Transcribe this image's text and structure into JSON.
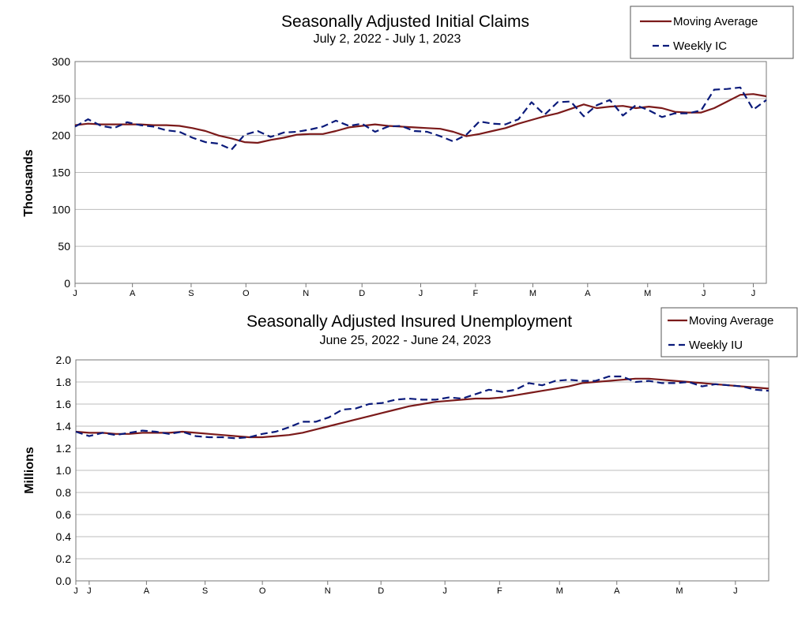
{
  "colors": {
    "moving_average": "#7b1a1a",
    "weekly": "#0a1a7a",
    "grid": "#bdbdbd",
    "axis": "#777777"
  },
  "chart_data": [
    {
      "type": "line",
      "title": "Seasonally Adjusted Initial Claims",
      "subtitle": "July 2, 2022 - July 1, 2023",
      "ylabel": "Thousands",
      "ylim": [
        0,
        300
      ],
      "yticks": [
        "0",
        "50",
        "100",
        "150",
        "200",
        "250",
        "300"
      ],
      "ytick_values": [
        0,
        50,
        100,
        150,
        200,
        250,
        300
      ],
      "xticks": [
        "J",
        "A",
        "S",
        "O",
        "N",
        "D",
        "J",
        "F",
        "M",
        "A",
        "M",
        "J",
        "J"
      ],
      "xtick_weeks": [
        0,
        4.4,
        8.9,
        13.1,
        17.7,
        22,
        26.5,
        30.7,
        35.1,
        39.3,
        43.9,
        48.2,
        52
      ],
      "grid": true,
      "legend": "top-right",
      "series": [
        {
          "name": "Moving Average",
          "style": "solid",
          "values": [
            214,
            216,
            215,
            215,
            215,
            215,
            214,
            214,
            213,
            210,
            206,
            200,
            196,
            191,
            190,
            194,
            197,
            201,
            202,
            202,
            206,
            211,
            213,
            215,
            213,
            212,
            211,
            210,
            209,
            205,
            199,
            202,
            206,
            210,
            216,
            221,
            226,
            230,
            236,
            242,
            237,
            239,
            240,
            237,
            239,
            237,
            232,
            231,
            231,
            237,
            246,
            255,
            256,
            253
          ]
        },
        {
          "name": "Weekly IC",
          "style": "dashed",
          "values": [
            212,
            222,
            213,
            210,
            218,
            214,
            212,
            207,
            205,
            197,
            191,
            189,
            181,
            201,
            206,
            198,
            204,
            205,
            208,
            212,
            220,
            213,
            216,
            205,
            212,
            213,
            206,
            205,
            199,
            192,
            201,
            219,
            216,
            215,
            222,
            245,
            228,
            245,
            246,
            226,
            241,
            248,
            227,
            241,
            234,
            225,
            230,
            230,
            234,
            262,
            263,
            265,
            235,
            248
          ]
        }
      ]
    },
    {
      "type": "line",
      "title": "Seasonally Adjusted Insured Unemployment",
      "subtitle": "June 25, 2022 - June 24, 2023",
      "ylabel": "Millions",
      "ylim": [
        0.0,
        2.0
      ],
      "yticks": [
        "0.0",
        "0.2",
        "0.4",
        "0.6",
        "0.8",
        "1.0",
        "1.2",
        "1.4",
        "1.6",
        "1.8",
        "2.0"
      ],
      "ytick_values": [
        0.0,
        0.2,
        0.4,
        0.6,
        0.8,
        1.0,
        1.2,
        1.4,
        1.6,
        1.8,
        2.0
      ],
      "xticks": [
        "J",
        "J",
        "A",
        "S",
        "O",
        "N",
        "D",
        "J",
        "F",
        "M",
        "A",
        "M",
        "J"
      ],
      "xtick_weeks": [
        0,
        1,
        5.3,
        9.7,
        14,
        18.9,
        22.9,
        27.7,
        31.8,
        36.3,
        40.6,
        45.3,
        49.5
      ],
      "grid": true,
      "legend": "top-right",
      "series": [
        {
          "name": "Moving Average",
          "style": "solid",
          "values": [
            1.35,
            1.34,
            1.34,
            1.33,
            1.33,
            1.34,
            1.34,
            1.34,
            1.35,
            1.34,
            1.33,
            1.32,
            1.31,
            1.3,
            1.3,
            1.31,
            1.32,
            1.34,
            1.37,
            1.4,
            1.43,
            1.46,
            1.49,
            1.52,
            1.55,
            1.58,
            1.6,
            1.62,
            1.63,
            1.64,
            1.65,
            1.65,
            1.66,
            1.68,
            1.7,
            1.72,
            1.74,
            1.76,
            1.79,
            1.8,
            1.81,
            1.82,
            1.83,
            1.83,
            1.82,
            1.81,
            1.8,
            1.79,
            1.78,
            1.77,
            1.76,
            1.75,
            1.74
          ]
        },
        {
          "name": "Weekly IU",
          "style": "dashed",
          "values": [
            1.35,
            1.31,
            1.34,
            1.32,
            1.34,
            1.36,
            1.35,
            1.33,
            1.35,
            1.31,
            1.3,
            1.3,
            1.29,
            1.3,
            1.33,
            1.35,
            1.39,
            1.44,
            1.44,
            1.48,
            1.55,
            1.56,
            1.6,
            1.61,
            1.64,
            1.65,
            1.64,
            1.64,
            1.66,
            1.65,
            1.69,
            1.73,
            1.71,
            1.73,
            1.79,
            1.77,
            1.81,
            1.82,
            1.81,
            1.81,
            1.85,
            1.85,
            1.8,
            1.81,
            1.79,
            1.79,
            1.8,
            1.76,
            1.78,
            1.77,
            1.76,
            1.73,
            1.72
          ]
        }
      ]
    }
  ]
}
